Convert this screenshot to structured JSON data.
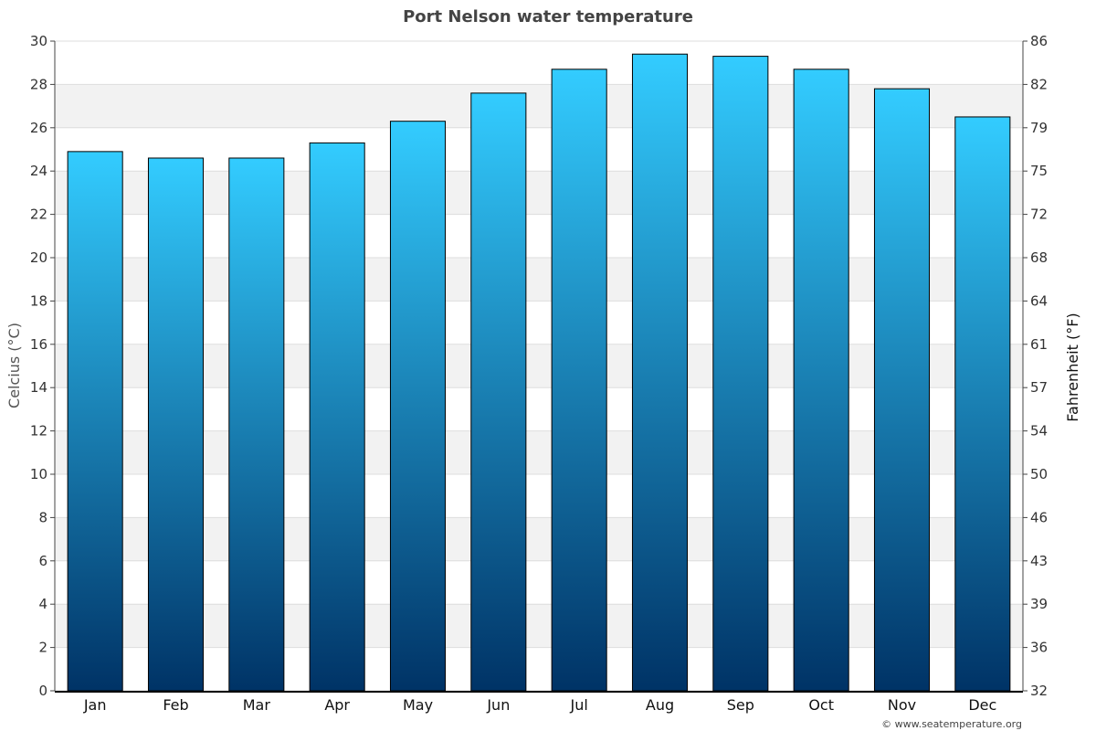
{
  "chart_data": {
    "type": "bar",
    "title": "Port Nelson water temperature",
    "categories": [
      "Jan",
      "Feb",
      "Mar",
      "Apr",
      "May",
      "Jun",
      "Jul",
      "Aug",
      "Sep",
      "Oct",
      "Nov",
      "Dec"
    ],
    "series": [
      {
        "values": [
          24.9,
          24.6,
          24.6,
          25.3,
          26.3,
          27.6,
          28.7,
          29.4,
          29.3,
          28.7,
          27.8,
          26.5
        ]
      }
    ],
    "ylabel": "Celcius (°C)",
    "ylabel_right": "Fahrenheit (°F)",
    "ylim": [
      0,
      30
    ],
    "y_ticks": [
      "0",
      "2",
      "4",
      "6",
      "8",
      "10",
      "12",
      "14",
      "16",
      "18",
      "20",
      "22",
      "24",
      "26",
      "28",
      "30"
    ],
    "y_ticks_right": [
      "32",
      "36",
      "39",
      "43",
      "46",
      "50",
      "54",
      "57",
      "61",
      "64",
      "68",
      "72",
      "75",
      "79",
      "82",
      "86"
    ],
    "grid": true,
    "legend": "none",
    "colors": {
      "bar_top": "#33ccff",
      "bar_bottom": "#003366",
      "bar_stroke": "#000000",
      "band": "#f2f2f2",
      "gridline": "#dddddd"
    }
  },
  "credit": "© www.seatemperature.org"
}
